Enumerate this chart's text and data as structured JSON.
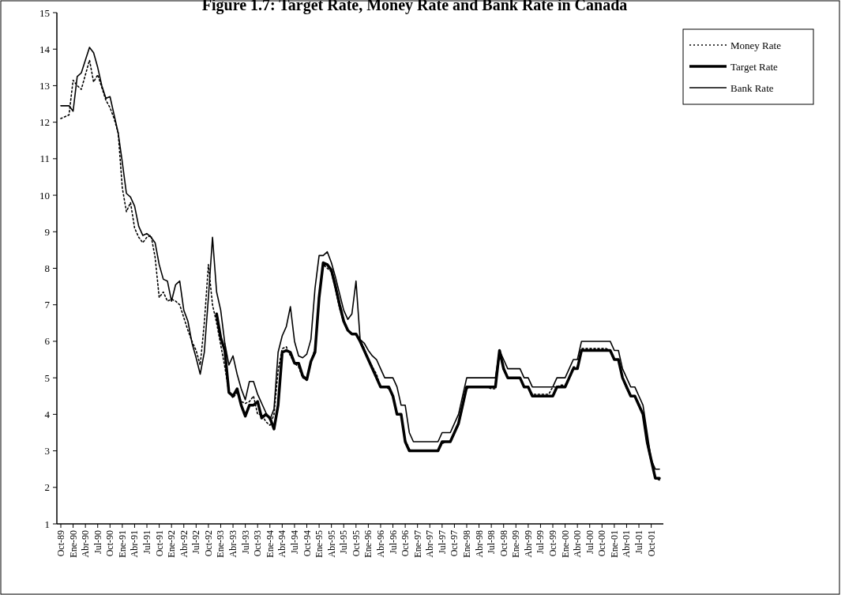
{
  "chart_data": {
    "type": "line",
    "title": "Figure 1.7: Target Rate, Money Rate and Bank Rate in Canada",
    "categories": [
      "Oct-89",
      null,
      null,
      "Ene-90",
      null,
      null,
      "Abr-90",
      null,
      null,
      "Jul-90",
      null,
      null,
      "Oct-90",
      null,
      null,
      "Ene-91",
      null,
      null,
      "Abr-91",
      null,
      null,
      "Jul-91",
      null,
      null,
      "Oct-91",
      null,
      null,
      "Ene-92",
      null,
      null,
      "Abr-92",
      null,
      null,
      "Jul-92",
      null,
      null,
      "Oct-92",
      null,
      null,
      "Ene-93",
      null,
      null,
      "Abr-93",
      null,
      null,
      "Jul-93",
      null,
      null,
      "Oct-93",
      null,
      null,
      "Ene-94",
      null,
      null,
      "Abr-94",
      null,
      null,
      "Jul-94",
      null,
      null,
      "Oct-94",
      null,
      null,
      "Ene-95",
      null,
      null,
      "Abr-95",
      null,
      null,
      "Jul-95",
      null,
      null,
      "Oct-95",
      null,
      null,
      "Ene-96",
      null,
      null,
      "Abr-96",
      null,
      null,
      "Jul-96",
      null,
      null,
      "Oct-96",
      null,
      null,
      "Ene-97",
      null,
      null,
      "Abr-97",
      null,
      null,
      "Jul-97",
      null,
      null,
      "Oct-97",
      null,
      null,
      "Ene-98",
      null,
      null,
      "Abr-98",
      null,
      null,
      "Jul-98",
      null,
      null,
      "Oct-98",
      null,
      null,
      "Ene-99",
      null,
      null,
      "Abr-99",
      null,
      null,
      "Jul-99",
      null,
      null,
      "Oct-99",
      null,
      null,
      "Ene-00",
      null,
      null,
      "Abr-00",
      null,
      null,
      "Jul-00",
      null,
      null,
      "Oct-00",
      null,
      null,
      "Ene-01",
      null,
      null,
      "Abr-01",
      null,
      null,
      "Jul-01",
      null,
      null,
      "Oct-01",
      null,
      null
    ],
    "series": [
      {
        "name": "Money Rate",
        "color": "#000000",
        "line_style": "dotted",
        "values": [
          12.1,
          12.15,
          12.2,
          13.15,
          13.0,
          12.9,
          13.3,
          13.7,
          13.1,
          13.3,
          12.95,
          12.6,
          12.4,
          12.1,
          11.7,
          10.2,
          9.55,
          9.8,
          9.1,
          8.85,
          8.7,
          8.85,
          8.9,
          8.3,
          7.2,
          7.35,
          7.1,
          7.15,
          7.1,
          7.0,
          6.65,
          6.3,
          6.0,
          5.75,
          5.35,
          6.5,
          8.1,
          7.0,
          6.5,
          5.9,
          5.3,
          4.6,
          4.45,
          4.6,
          4.35,
          4.3,
          4.35,
          4.5,
          4.0,
          4.0,
          3.8,
          3.7,
          4.0,
          5.2,
          5.8,
          5.85,
          5.6,
          5.4,
          5.3,
          5.0,
          4.95,
          5.45,
          5.8,
          7.3,
          8.1,
          8.0,
          7.9,
          7.4,
          6.9,
          6.5,
          6.3,
          6.2,
          6.2,
          6.05,
          5.8,
          5.5,
          5.3,
          5.1,
          4.75,
          4.75,
          4.7,
          4.5,
          4.0,
          4.0,
          3.3,
          3.05,
          3.0,
          3.0,
          3.0,
          3.0,
          3.0,
          3.0,
          3.0,
          3.2,
          3.25,
          3.25,
          3.5,
          3.7,
          4.2,
          4.7,
          4.75,
          4.75,
          4.75,
          4.75,
          4.75,
          4.7,
          4.7,
          5.7,
          5.2,
          5.0,
          5.0,
          5.0,
          5.0,
          4.75,
          4.75,
          4.55,
          4.55,
          4.55,
          4.55,
          4.55,
          4.75,
          4.75,
          4.8,
          4.8,
          5.0,
          5.3,
          5.3,
          5.8,
          5.8,
          5.8,
          5.8,
          5.8,
          5.8,
          5.8,
          5.75,
          5.5,
          5.5,
          5.0,
          4.7,
          4.5,
          4.5,
          4.3,
          4.0,
          3.2,
          2.7,
          2.25,
          2.2
        ]
      },
      {
        "name": "Target Rate",
        "color": "#000000",
        "line_style": "solid",
        "values": [
          null,
          null,
          null,
          null,
          null,
          null,
          null,
          null,
          null,
          null,
          null,
          null,
          null,
          null,
          null,
          null,
          null,
          null,
          null,
          null,
          null,
          null,
          null,
          null,
          null,
          null,
          null,
          null,
          null,
          null,
          null,
          null,
          null,
          null,
          null,
          null,
          null,
          null,
          6.75,
          6.1,
          5.75,
          4.6,
          4.5,
          4.7,
          4.25,
          3.95,
          4.25,
          4.25,
          4.35,
          3.9,
          4.0,
          3.9,
          3.6,
          4.25,
          5.7,
          5.75,
          5.7,
          5.4,
          5.4,
          5.05,
          4.95,
          5.45,
          5.7,
          7.2,
          8.15,
          8.1,
          7.95,
          7.5,
          7.0,
          6.55,
          6.3,
          6.2,
          6.2,
          6.0,
          5.75,
          5.5,
          5.25,
          5.0,
          4.75,
          4.75,
          4.75,
          4.5,
          4.0,
          4.0,
          3.25,
          3.0,
          3.0,
          3.0,
          3.0,
          3.0,
          3.0,
          3.0,
          3.0,
          3.25,
          3.25,
          3.25,
          3.5,
          3.75,
          4.25,
          4.75,
          4.75,
          4.75,
          4.75,
          4.75,
          4.75,
          4.75,
          4.75,
          5.75,
          5.25,
          5.0,
          5.0,
          5.0,
          5.0,
          4.75,
          4.75,
          4.5,
          4.5,
          4.5,
          4.5,
          4.5,
          4.5,
          4.75,
          4.75,
          4.75,
          5.0,
          5.25,
          5.25,
          5.75,
          5.75,
          5.75,
          5.75,
          5.75,
          5.75,
          5.75,
          5.75,
          5.5,
          5.5,
          5.0,
          4.75,
          4.5,
          4.5,
          4.25,
          4.0,
          3.25,
          2.75,
          2.25,
          2.25
        ]
      },
      {
        "name": "Bank Rate",
        "color": "#000000",
        "line_style": "solid",
        "values": [
          12.45,
          12.45,
          12.45,
          12.3,
          13.25,
          13.35,
          13.7,
          14.05,
          13.9,
          13.5,
          13.0,
          12.65,
          12.7,
          12.2,
          11.7,
          10.9,
          10.05,
          9.95,
          9.7,
          9.15,
          8.9,
          8.95,
          8.85,
          8.7,
          8.1,
          7.7,
          7.65,
          7.1,
          7.55,
          7.65,
          6.85,
          6.55,
          5.95,
          5.55,
          5.1,
          5.7,
          7.2,
          8.85,
          7.35,
          6.85,
          5.95,
          5.35,
          5.6,
          5.1,
          4.7,
          4.4,
          4.9,
          4.9,
          4.55,
          4.3,
          4.05,
          3.85,
          4.15,
          5.7,
          6.15,
          6.4,
          6.95,
          6.0,
          5.6,
          5.55,
          5.65,
          6.05,
          7.45,
          8.35,
          8.35,
          8.45,
          8.15,
          7.75,
          7.3,
          6.85,
          6.6,
          6.75,
          7.65,
          6.05,
          5.95,
          5.75,
          5.6,
          5.5,
          5.25,
          5.0,
          5.0,
          5.0,
          4.75,
          4.25,
          4.25,
          3.5,
          3.25,
          3.25,
          3.25,
          3.25,
          3.25,
          3.25,
          3.25,
          3.5,
          3.5,
          3.5,
          3.75,
          4.0,
          4.5,
          5.0,
          5.0,
          5.0,
          5.0,
          5.0,
          5.0,
          5.0,
          5.0,
          5.75,
          5.5,
          5.25,
          5.25,
          5.25,
          5.25,
          5.0,
          5.0,
          4.75,
          4.75,
          4.75,
          4.75,
          4.75,
          4.75,
          5.0,
          5.0,
          5.0,
          5.25,
          5.5,
          5.5,
          6.0,
          6.0,
          6.0,
          6.0,
          6.0,
          6.0,
          6.0,
          6.0,
          5.75,
          5.75,
          5.25,
          5.0,
          4.75,
          4.75,
          4.5,
          4.25,
          3.5,
          2.75,
          2.5,
          2.5
        ]
      }
    ],
    "ylim": [
      1,
      15
    ],
    "yticks": [
      1,
      2,
      3,
      4,
      5,
      6,
      7,
      8,
      9,
      10,
      11,
      12,
      13,
      14,
      15
    ],
    "grid": false,
    "legend": "top right"
  }
}
